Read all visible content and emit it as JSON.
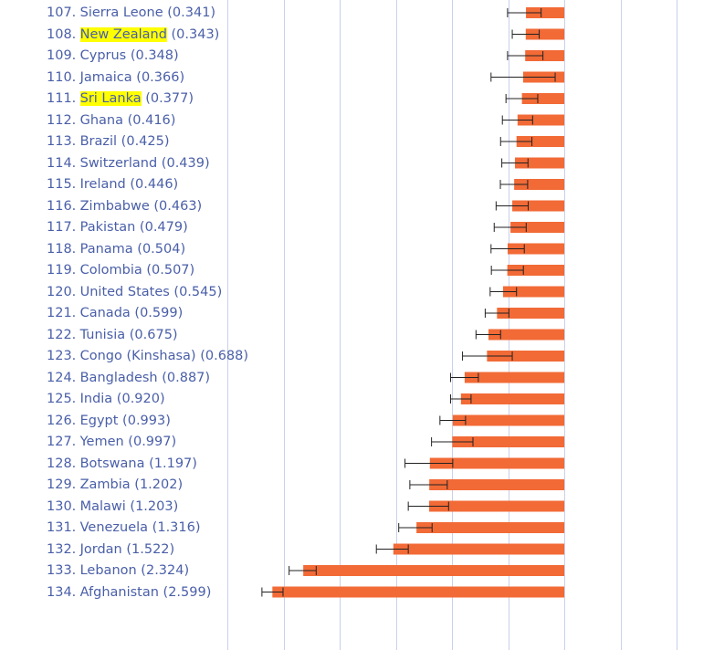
{
  "chart_data": {
    "type": "bar",
    "orientation": "horizontal",
    "bar_color": "#f26a36",
    "grid_color": "#c9d0ea",
    "label_color": "#4a5fa8",
    "highlight_color": "#ffff00",
    "grid": true,
    "rows": [
      {
        "rank": "107.",
        "country": "Sierra Leone",
        "value_label": "(0.341)",
        "value": 0.341,
        "err_low": 0.505,
        "err_high": 0.206,
        "highlight": false
      },
      {
        "rank": "108.",
        "country": "New Zealand",
        "value_label": "(0.343)",
        "value": 0.343,
        "err_low": 0.463,
        "err_high": 0.223,
        "highlight": true
      },
      {
        "rank": "109.",
        "country": "Cyprus",
        "value_label": "(0.348)",
        "value": 0.348,
        "err_low": 0.505,
        "err_high": 0.19,
        "highlight": false
      },
      {
        "rank": "110.",
        "country": "Jamaica",
        "value_label": "(0.366)",
        "value": 0.366,
        "err_low": 0.652,
        "err_high": 0.081,
        "highlight": false
      },
      {
        "rank": "111.",
        "country": "Sri Lanka",
        "value_label": "(0.377)",
        "value": 0.377,
        "err_low": 0.519,
        "err_high": 0.236,
        "highlight": true
      },
      {
        "rank": "112.",
        "country": "Ghana",
        "value_label": "(0.416)",
        "value": 0.416,
        "err_low": 0.551,
        "err_high": 0.282,
        "highlight": false
      },
      {
        "rank": "113.",
        "country": "Brazil",
        "value_label": "(0.425)",
        "value": 0.425,
        "err_low": 0.567,
        "err_high": 0.288,
        "highlight": false
      },
      {
        "rank": "114.",
        "country": "Switzerland",
        "value_label": "(0.439)",
        "value": 0.439,
        "err_low": 0.556,
        "err_high": 0.323,
        "highlight": false
      },
      {
        "rank": "115.",
        "country": "Ireland",
        "value_label": "(0.446)",
        "value": 0.446,
        "err_low": 0.569,
        "err_high": 0.326,
        "highlight": false
      },
      {
        "rank": "116.",
        "country": "Zimbabwe",
        "value_label": "(0.463)",
        "value": 0.463,
        "err_low": 0.607,
        "err_high": 0.321,
        "highlight": false
      },
      {
        "rank": "117.",
        "country": "Pakistan",
        "value_label": "(0.479)",
        "value": 0.479,
        "err_low": 0.624,
        "err_high": 0.339,
        "highlight": false
      },
      {
        "rank": "118.",
        "country": "Panama",
        "value_label": "(0.504)",
        "value": 0.504,
        "err_low": 0.652,
        "err_high": 0.356,
        "highlight": false
      },
      {
        "rank": "119.",
        "country": "Colombia",
        "value_label": "(0.507)",
        "value": 0.507,
        "err_low": 0.649,
        "err_high": 0.364,
        "highlight": false
      },
      {
        "rank": "120.",
        "country": "United States",
        "value_label": "(0.545)",
        "value": 0.545,
        "err_low": 0.66,
        "err_high": 0.425,
        "highlight": false
      },
      {
        "rank": "121.",
        "country": "Canada",
        "value_label": "(0.599)",
        "value": 0.599,
        "err_low": 0.704,
        "err_high": 0.493,
        "highlight": false
      },
      {
        "rank": "122.",
        "country": "Tunisia",
        "value_label": "(0.675)",
        "value": 0.675,
        "err_low": 0.786,
        "err_high": 0.567,
        "highlight": false
      },
      {
        "rank": "123.",
        "country": "Congo (Kinshasa)",
        "value_label": "(0.688)",
        "value": 0.688,
        "err_low": 0.906,
        "err_high": 0.463,
        "highlight": false
      },
      {
        "rank": "124.",
        "country": "Bangladesh",
        "value_label": "(0.887)",
        "value": 0.887,
        "err_low": 1.012,
        "err_high": 0.765,
        "highlight": false
      },
      {
        "rank": "125.",
        "country": "India",
        "value_label": "(0.920)",
        "value": 0.92,
        "err_low": 1.012,
        "err_high": 0.83,
        "highlight": false
      },
      {
        "rank": "126.",
        "country": "Egypt",
        "value_label": "(0.993)",
        "value": 0.993,
        "err_low": 1.107,
        "err_high": 0.879,
        "highlight": false
      },
      {
        "rank": "127.",
        "country": "Yemen",
        "value_label": "(0.997)",
        "value": 0.997,
        "err_low": 1.182,
        "err_high": 0.813,
        "highlight": false
      },
      {
        "rank": "128.",
        "country": "Botswana",
        "value_label": "(1.197)",
        "value": 1.197,
        "err_low": 1.418,
        "err_high": 0.993,
        "highlight": false
      },
      {
        "rank": "129.",
        "country": "Zambia",
        "value_label": "(1.202)",
        "value": 1.202,
        "err_low": 1.375,
        "err_high": 1.042,
        "highlight": false
      },
      {
        "rank": "130.",
        "country": "Malawi",
        "value_label": "(1.203)",
        "value": 1.203,
        "err_low": 1.389,
        "err_high": 1.03,
        "highlight": false
      },
      {
        "rank": "131.",
        "country": "Venezuela",
        "value_label": "(1.316)",
        "value": 1.316,
        "err_low": 1.474,
        "err_high": 1.177,
        "highlight": false
      },
      {
        "rank": "132.",
        "country": "Jordan",
        "value_label": "(1.522)",
        "value": 1.522,
        "err_low": 1.673,
        "err_high": 1.389,
        "highlight": false
      },
      {
        "rank": "133.",
        "country": "Lebanon",
        "value_label": "(2.324)",
        "value": 2.324,
        "err_low": 2.45,
        "err_high": 2.209,
        "highlight": false
      },
      {
        "rank": "134.",
        "country": "Afghanistan",
        "value_label": "(2.599)",
        "value": 2.599,
        "err_low": 2.692,
        "err_high": 2.504,
        "highlight": false
      }
    ],
    "gridlines": [
      3.0,
      2.5,
      2.0,
      1.5,
      1.0,
      0.5,
      0,
      -0.5,
      -1.0
    ]
  }
}
